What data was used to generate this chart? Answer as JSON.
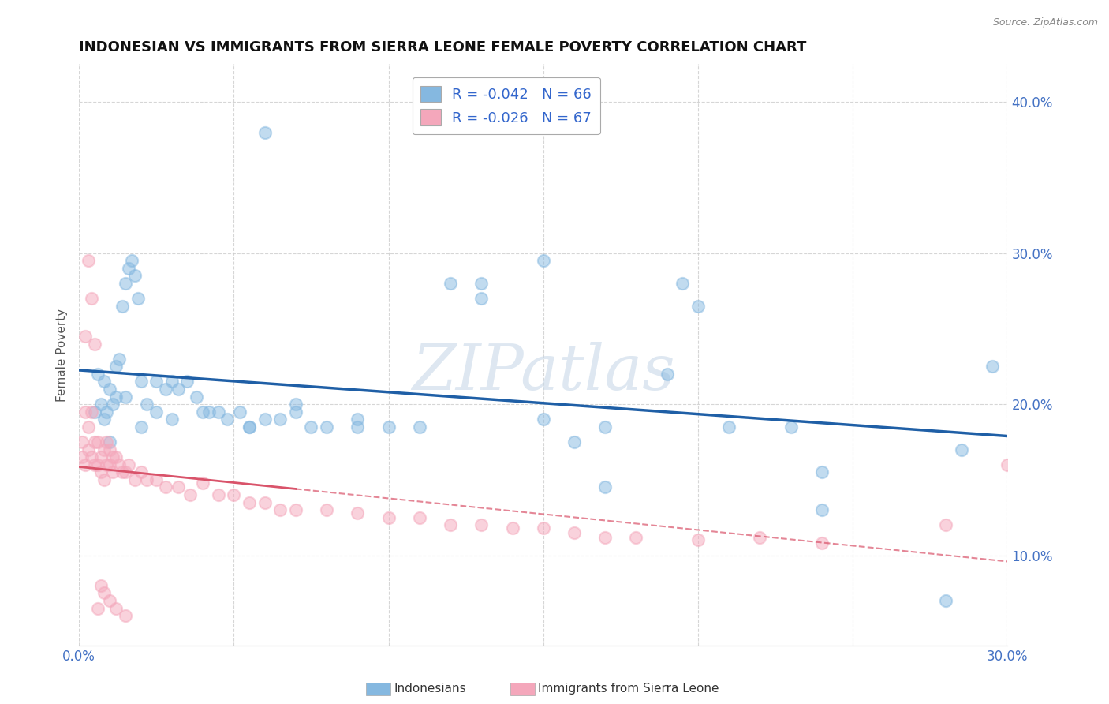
{
  "title": "INDONESIAN VS IMMIGRANTS FROM SIERRA LEONE FEMALE POVERTY CORRELATION CHART",
  "source_text": "Source: ZipAtlas.com",
  "ylabel": "Female Poverty",
  "xlim": [
    0.0,
    0.3
  ],
  "ylim": [
    0.04,
    0.425
  ],
  "xtick_vals": [
    0.0,
    0.05,
    0.1,
    0.15,
    0.2,
    0.25,
    0.3
  ],
  "xtick_labels": [
    "0.0%",
    "",
    "",
    "",
    "",
    "",
    "30.0%"
  ],
  "ytick_vals": [
    0.1,
    0.2,
    0.3,
    0.4
  ],
  "ytick_labels": [
    "10.0%",
    "20.0%",
    "30.0%",
    "40.0%"
  ],
  "legend_R1": "R = -0.042",
  "legend_N1": "N = 66",
  "legend_R2": "R = -0.026",
  "legend_N2": "N = 67",
  "color_blue": "#85b8e0",
  "color_pink": "#f4a7bb",
  "color_trendline_blue": "#1f5fa6",
  "color_trendline_pink": "#d9536a",
  "watermark": "ZIPatlas",
  "legend_label1": "Indonesians",
  "legend_label2": "Immigrants from Sierra Leone",
  "blue_x": [
    0.005,
    0.006,
    0.007,
    0.008,
    0.009,
    0.01,
    0.011,
    0.012,
    0.013,
    0.014,
    0.015,
    0.016,
    0.017,
    0.018,
    0.019,
    0.02,
    0.022,
    0.025,
    0.028,
    0.03,
    0.032,
    0.035,
    0.038,
    0.042,
    0.045,
    0.048,
    0.052,
    0.055,
    0.06,
    0.065,
    0.07,
    0.075,
    0.08,
    0.09,
    0.1,
    0.11,
    0.12,
    0.15,
    0.16,
    0.195,
    0.21,
    0.23,
    0.24,
    0.28,
    0.295,
    0.008,
    0.01,
    0.012,
    0.015,
    0.02,
    0.025,
    0.03,
    0.04,
    0.055,
    0.07,
    0.09,
    0.13,
    0.17,
    0.24,
    0.285,
    0.06,
    0.13,
    0.2,
    0.15,
    0.17,
    0.19
  ],
  "blue_y": [
    0.195,
    0.22,
    0.2,
    0.215,
    0.195,
    0.21,
    0.2,
    0.225,
    0.23,
    0.265,
    0.28,
    0.29,
    0.295,
    0.285,
    0.27,
    0.215,
    0.2,
    0.215,
    0.21,
    0.215,
    0.21,
    0.215,
    0.205,
    0.195,
    0.195,
    0.19,
    0.195,
    0.185,
    0.19,
    0.19,
    0.195,
    0.185,
    0.185,
    0.185,
    0.185,
    0.185,
    0.28,
    0.19,
    0.175,
    0.28,
    0.185,
    0.185,
    0.13,
    0.07,
    0.225,
    0.19,
    0.175,
    0.205,
    0.205,
    0.185,
    0.195,
    0.19,
    0.195,
    0.185,
    0.2,
    0.19,
    0.28,
    0.185,
    0.155,
    0.17,
    0.38,
    0.27,
    0.265,
    0.295,
    0.145,
    0.22
  ],
  "pink_x": [
    0.001,
    0.001,
    0.002,
    0.002,
    0.003,
    0.003,
    0.004,
    0.004,
    0.005,
    0.005,
    0.006,
    0.006,
    0.007,
    0.007,
    0.008,
    0.008,
    0.009,
    0.009,
    0.01,
    0.01,
    0.011,
    0.011,
    0.012,
    0.013,
    0.014,
    0.015,
    0.016,
    0.018,
    0.02,
    0.022,
    0.025,
    0.028,
    0.032,
    0.036,
    0.04,
    0.045,
    0.05,
    0.055,
    0.06,
    0.065,
    0.07,
    0.08,
    0.09,
    0.1,
    0.11,
    0.12,
    0.13,
    0.14,
    0.15,
    0.16,
    0.17,
    0.18,
    0.2,
    0.22,
    0.24,
    0.28,
    0.3,
    0.002,
    0.003,
    0.004,
    0.005,
    0.006,
    0.007,
    0.008,
    0.01,
    0.012,
    0.015
  ],
  "pink_y": [
    0.175,
    0.165,
    0.195,
    0.16,
    0.185,
    0.17,
    0.195,
    0.165,
    0.175,
    0.16,
    0.175,
    0.16,
    0.165,
    0.155,
    0.17,
    0.15,
    0.175,
    0.16,
    0.17,
    0.16,
    0.165,
    0.155,
    0.165,
    0.16,
    0.155,
    0.155,
    0.16,
    0.15,
    0.155,
    0.15,
    0.15,
    0.145,
    0.145,
    0.14,
    0.148,
    0.14,
    0.14,
    0.135,
    0.135,
    0.13,
    0.13,
    0.13,
    0.128,
    0.125,
    0.125,
    0.12,
    0.12,
    0.118,
    0.118,
    0.115,
    0.112,
    0.112,
    0.11,
    0.112,
    0.108,
    0.12,
    0.16,
    0.245,
    0.295,
    0.27,
    0.24,
    0.065,
    0.08,
    0.075,
    0.07,
    0.065,
    0.06
  ]
}
